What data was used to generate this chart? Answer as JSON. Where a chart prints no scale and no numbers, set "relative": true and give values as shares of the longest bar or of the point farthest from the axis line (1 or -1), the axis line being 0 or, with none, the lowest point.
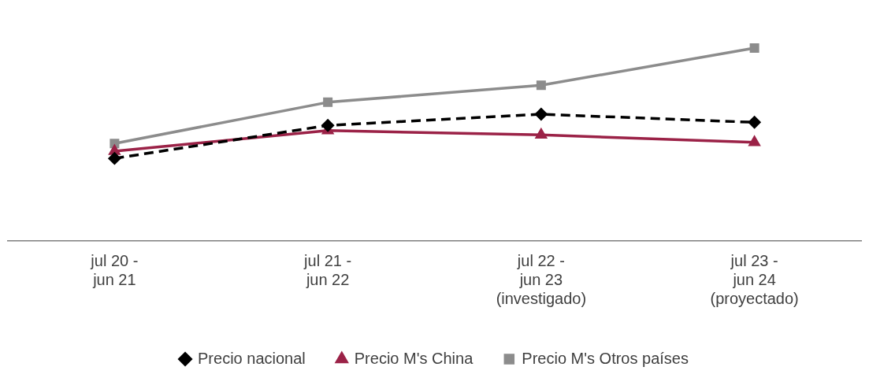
{
  "chart_data": {
    "type": "line",
    "relative": true,
    "categories": [
      "jul 20 - jun 21",
      "jul 21 - jun 22",
      "jul 22 - jun 23 (investigado)",
      "jul 23 - jun 24 (proyectado)"
    ],
    "series": [
      {
        "name": "Precio nacional",
        "color": "#000000",
        "marker": "diamond",
        "line_style": "dashed",
        "values": [
          0.428,
          0.599,
          0.657,
          0.615
        ]
      },
      {
        "name": "Precio M's China",
        "color": "#9b2247",
        "marker": "triangle",
        "line_style": "solid",
        "values": [
          0.465,
          0.572,
          0.55,
          0.511
        ]
      },
      {
        "name": "Precio M's Otros países",
        "color": "#8c8c8c",
        "marker": "square",
        "line_style": "solid",
        "values": [
          0.505,
          0.719,
          0.807,
          1
        ]
      }
    ],
    "legend": "bottom"
  }
}
